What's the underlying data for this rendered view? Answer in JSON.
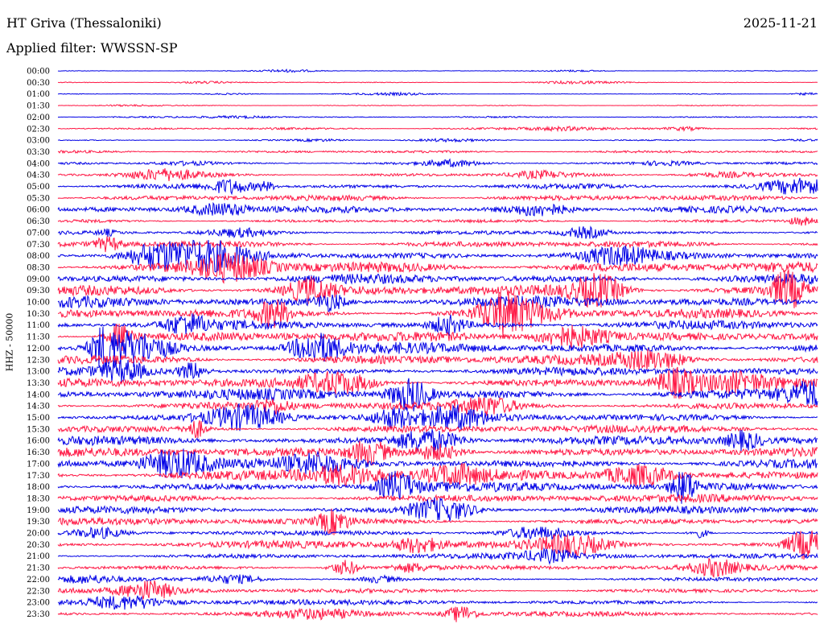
{
  "header": {
    "station": "HT Griva (Thessaloniki)",
    "date": "2025-11-21",
    "filter": "Applied filter: WWSSN-SP"
  },
  "chart_data": {
    "type": "line",
    "ylabel": "HHZ - 50000",
    "colors": [
      "#0000e6",
      "#ff1744"
    ],
    "categories": [
      "00:00",
      "00:30",
      "01:00",
      "01:30",
      "02:00",
      "02:30",
      "03:00",
      "03:30",
      "04:00",
      "04:30",
      "05:00",
      "05:30",
      "06:00",
      "06:30",
      "07:00",
      "07:30",
      "08:00",
      "08:30",
      "09:00",
      "09:30",
      "10:00",
      "10:30",
      "11:00",
      "11:30",
      "12:00",
      "12:30",
      "13:00",
      "13:30",
      "14:00",
      "14:30",
      "15:00",
      "15:30",
      "16:00",
      "16:30",
      "17:00",
      "17:30",
      "18:00",
      "18:30",
      "19:00",
      "19:30",
      "20:00",
      "20:30",
      "21:00",
      "21:30",
      "22:00",
      "22:30",
      "23:00",
      "23:30"
    ],
    "values": [
      0.5,
      0.6,
      0.5,
      0.6,
      1.0,
      1.5,
      0.8,
      1.8,
      1.6,
      2.2,
      3.5,
      4.0,
      4.5,
      2.2,
      2.5,
      4.5,
      6.0,
      7.5,
      6.5,
      7.5,
      7.5,
      6.5,
      6.0,
      7.0,
      7.5,
      7.0,
      5.5,
      6.5,
      7.5,
      6.0,
      6.0,
      5.5,
      6.0,
      6.5,
      7.0,
      7.5,
      6.5,
      5.5,
      5.0,
      5.0,
      3.0,
      5.5,
      4.0,
      3.5,
      2.5,
      3.5,
      3.5,
      3.5
    ]
  }
}
